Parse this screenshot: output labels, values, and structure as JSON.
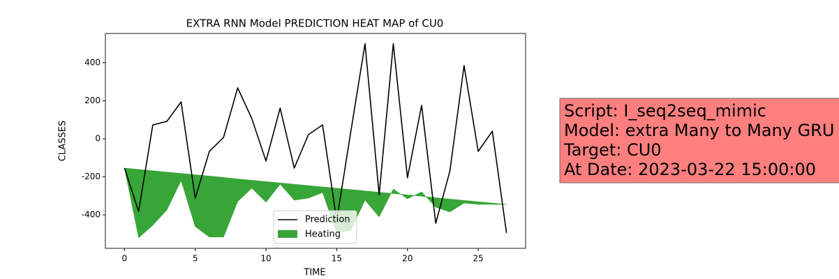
{
  "chart_data": {
    "type": "line",
    "title": "EXTRA RNN Model PREDICTION HEAT MAP of CU0",
    "xlabel": "TIME",
    "ylabel": "CLASSES",
    "x": [
      0,
      1,
      2,
      3,
      4,
      5,
      6,
      7,
      8,
      9,
      10,
      11,
      12,
      13,
      14,
      15,
      16,
      17,
      18,
      19,
      20,
      21,
      22,
      23,
      24,
      25,
      26,
      27
    ],
    "series": [
      {
        "name": "Prediction",
        "color": "#000000",
        "values": [
          -154,
          -382,
          73,
          92,
          194,
          -312,
          -66,
          7,
          268,
          106,
          -117,
          161,
          -154,
          22,
          73,
          -430,
          40,
          500,
          -294,
          500,
          -205,
          176,
          -444,
          -169,
          385,
          -66,
          40,
          -495
        ]
      },
      {
        "name": "Heating",
        "color": "#2ca02c",
        "values": [
          -154,
          -521,
          -455,
          -374,
          -220,
          -462,
          -517,
          -517,
          -330,
          -260,
          -334,
          -239,
          -323,
          -312,
          -283,
          -495,
          -481,
          -323,
          -411,
          -264,
          -316,
          -279,
          -360,
          -385,
          -338,
          -345,
          -345,
          -345
        ],
        "upper": [
          -154,
          -161,
          -168,
          -175,
          -182,
          -189,
          -196,
          -203,
          -211,
          -218,
          -225,
          -232,
          -239,
          -246,
          -253,
          -260,
          -267,
          -274,
          -281,
          -288,
          -295,
          -302,
          -310,
          -317,
          -324,
          -331,
          -338,
          -345
        ]
      }
    ],
    "xlim": [
      -1.35,
      28.35
    ],
    "xticks": [
      0,
      5,
      10,
      15,
      20,
      25
    ],
    "ylim": [
      -576,
      554
    ],
    "yticks": [
      -400,
      -200,
      0,
      200,
      400
    ],
    "legend": "lower center",
    "annotation": {
      "lines": [
        "Script: I_seq2seq_mimic",
        "Model: extra Many to Many GRU",
        "Target: CU0",
        "At Date: 2023-03-22 15:00:00"
      ],
      "background": "#ff7f7f"
    }
  }
}
